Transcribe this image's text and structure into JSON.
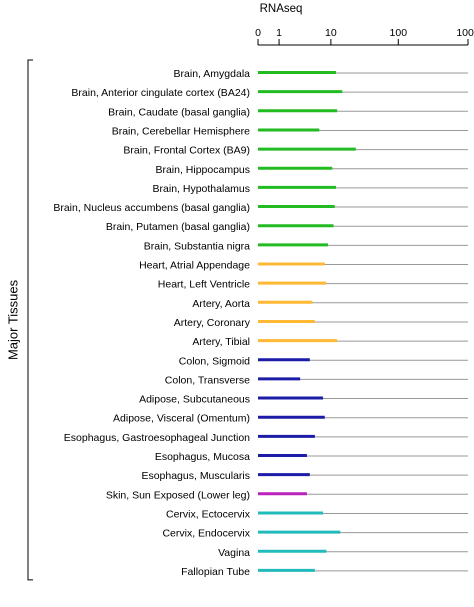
{
  "chart_data": {
    "type": "bar",
    "orientation": "horizontal",
    "xlabel": "RNAseq",
    "x_scale": "log(1+x)",
    "xlim": [
      0,
      1000
    ],
    "x_ticks": [
      0,
      1,
      10,
      100,
      1000
    ],
    "x_tick_labels": [
      "0",
      "1",
      "10",
      "100",
      "1000"
    ],
    "group_label": "Major Tissues",
    "colors": {
      "brain": "#22bb22",
      "heart_artery": "#ffb833",
      "digestive_adipose": "#1c1ca8",
      "skin": "#bb22bb",
      "reproductive": "#22bbbb",
      "row_line": "#999999",
      "axis": "#000000"
    },
    "categories": [
      "Brain, Amygdala",
      "Brain, Anterior cingulate cortex (BA24)",
      "Brain, Caudate (basal ganglia)",
      "Brain, Cerebellar Hemisphere",
      "Brain, Frontal Cortex (BA9)",
      "Brain, Hippocampus",
      "Brain, Hypothalamus",
      "Brain, Nucleus accumbens (basal ganglia)",
      "Brain, Putamen (basal ganglia)",
      "Brain, Substantia nigra",
      "Heart, Atrial Appendage",
      "Heart, Left Ventricle",
      "Artery, Aorta",
      "Artery, Coronary",
      "Artery, Tibial",
      "Colon, Sigmoid",
      "Colon, Transverse",
      "Adipose, Subcutaneous",
      "Adipose, Visceral (Omentum)",
      "Esophagus, Gastroesophageal Junction",
      "Esophagus, Mucosa",
      "Esophagus, Muscularis",
      "Skin, Sun Exposed (Lower leg)",
      "Cervix, Ectocervix",
      "Cervix, Endocervix",
      "Vagina",
      "Fallopian Tube"
    ],
    "values": [
      12,
      15,
      12.5,
      6.5,
      24,
      10.5,
      12,
      11.5,
      11,
      9,
      8,
      8.5,
      5,
      5.5,
      12.5,
      4.5,
      3,
      7.5,
      8,
      5.5,
      4,
      4.5,
      4,
      7.5,
      14,
      8.5,
      5.5
    ],
    "bar_colors": [
      "#22bb22",
      "#22bb22",
      "#22bb22",
      "#22bb22",
      "#22bb22",
      "#22bb22",
      "#22bb22",
      "#22bb22",
      "#22bb22",
      "#22bb22",
      "#ffb833",
      "#ffb833",
      "#ffb833",
      "#ffb833",
      "#ffb833",
      "#1c1ca8",
      "#1c1ca8",
      "#1c1ca8",
      "#1c1ca8",
      "#1c1ca8",
      "#1c1ca8",
      "#1c1ca8",
      "#bb22bb",
      "#22bbbb",
      "#22bbbb",
      "#22bbbb",
      "#22bbbb"
    ]
  }
}
